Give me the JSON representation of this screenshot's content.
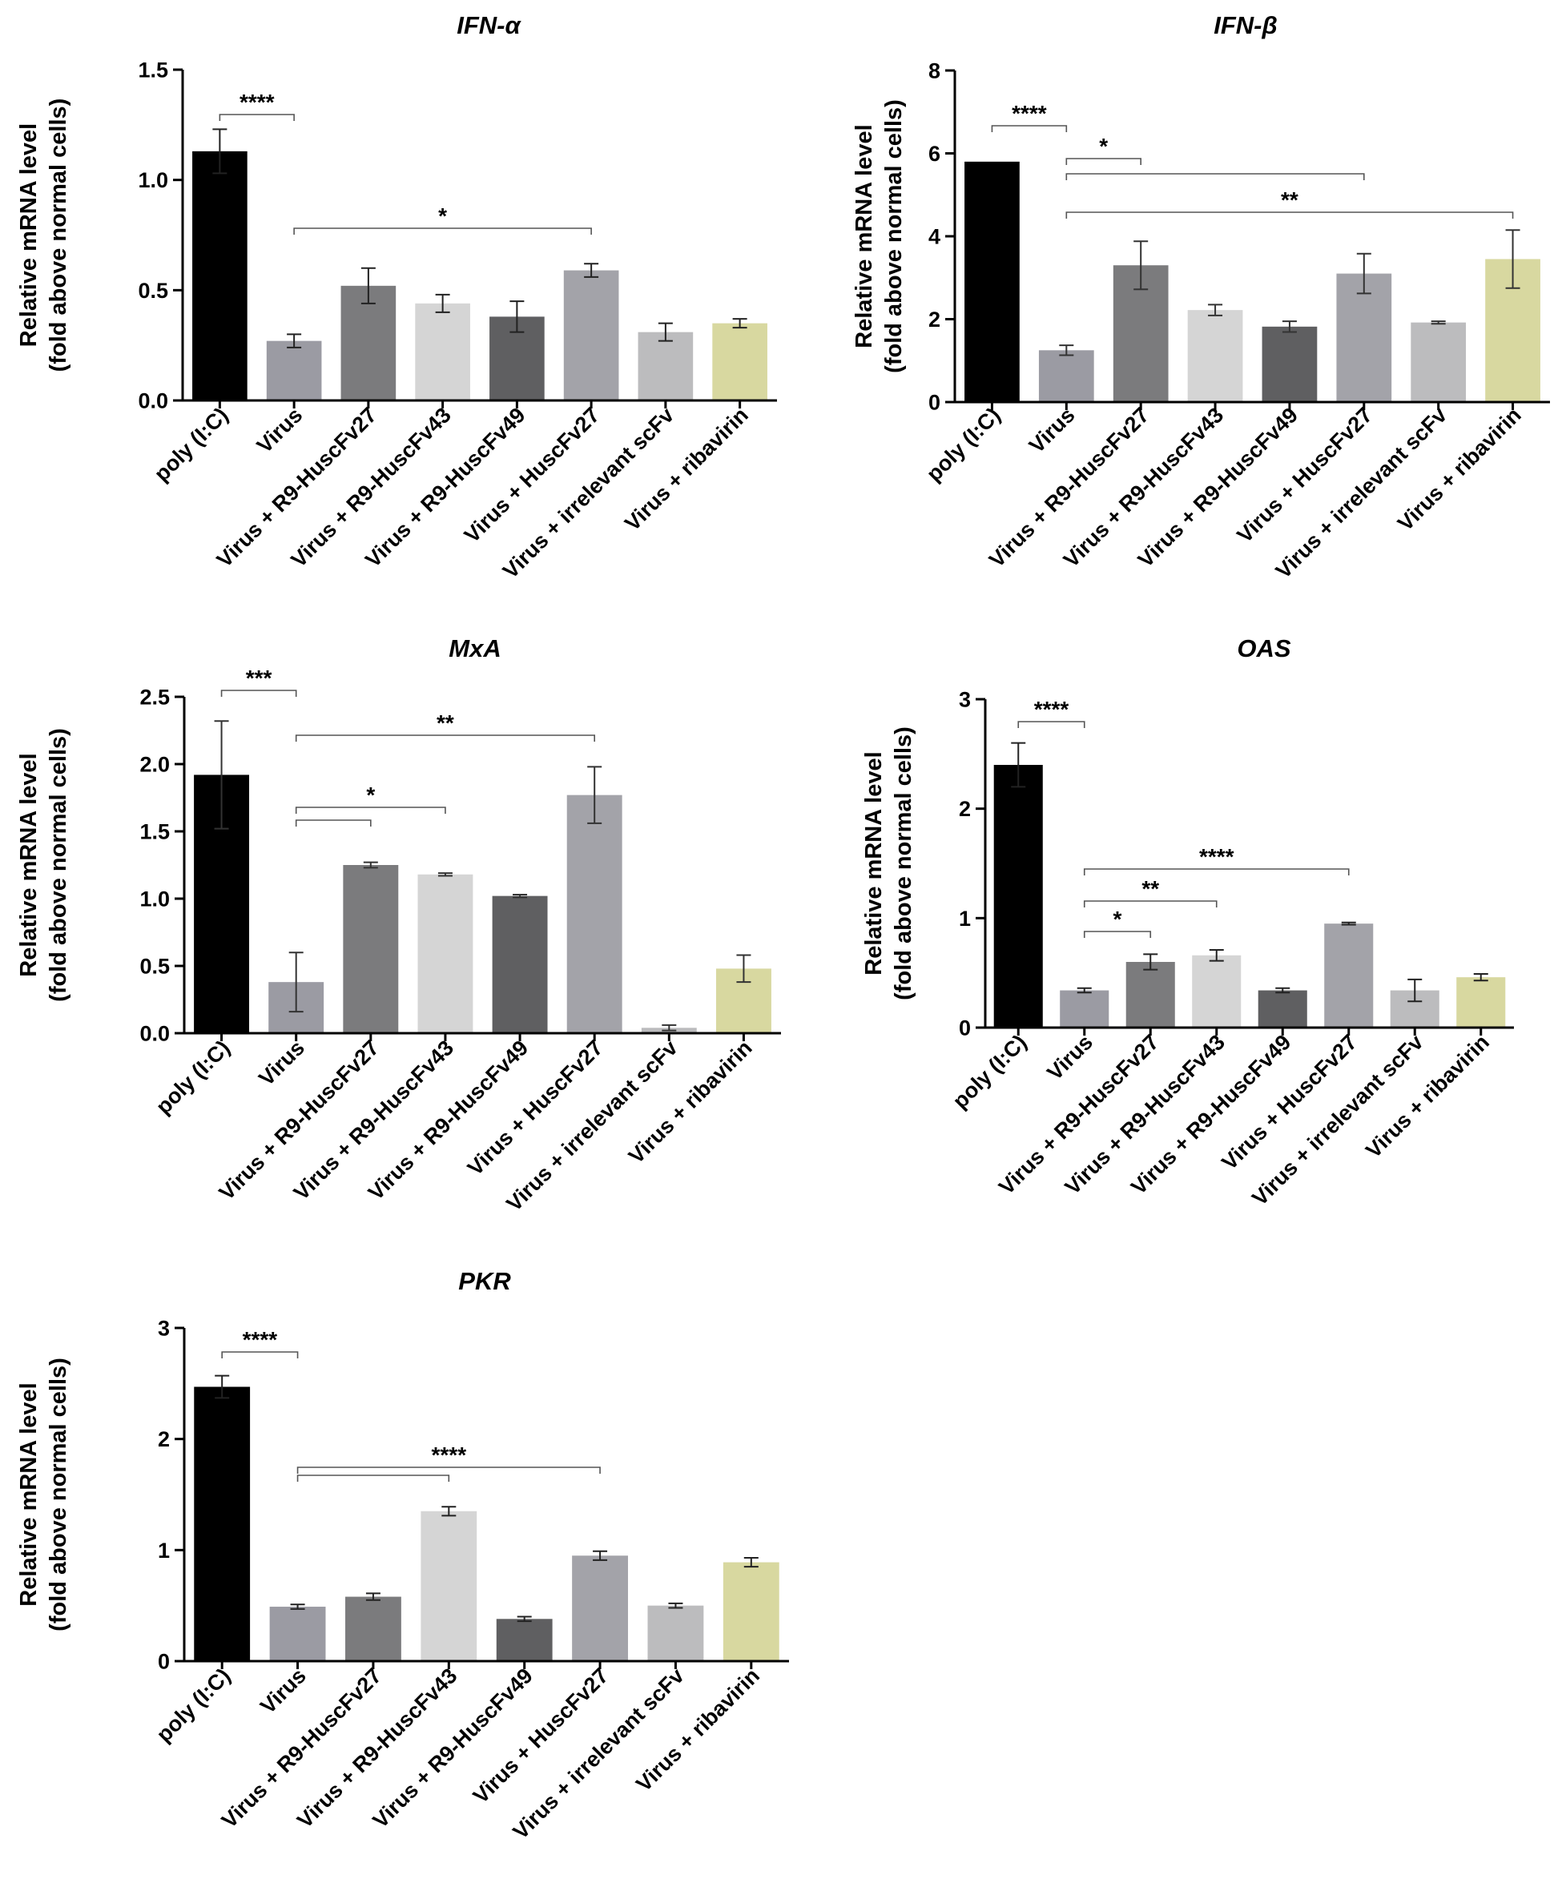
{
  "figure": {
    "categories": [
      "poly (I:C)",
      "Virus",
      "Virus + R9-HuscFv27",
      "Virus + R9-HuscFv43",
      "Virus + R9-HuscFv49",
      "Virus + HuscFv27",
      "Virus + irrelevant scFv",
      "Virus + ribavirin"
    ],
    "bar_colors": [
      "#000000",
      "#9b9ba3",
      "#7b7b7d",
      "#d5d5d5",
      "#5f5f61",
      "#a3a3a9",
      "#bcbcbe",
      "#d8d8a0"
    ]
  },
  "chart_data": [
    {
      "type": "bar",
      "title": "IFN-α",
      "ylabel": "Relative mRNA level",
      "ylabel2": "(fold above normal cells)",
      "categories": [
        "poly (I:C)",
        "Virus",
        "Virus + R9-HuscFv27",
        "Virus + R9-HuscFv43",
        "Virus + R9-HuscFv49",
        "Virus + HuscFv27",
        "Virus + irrelevant scFv",
        "Virus + ribavirin"
      ],
      "values": [
        1.13,
        0.27,
        0.52,
        0.44,
        0.38,
        0.59,
        0.31,
        0.35
      ],
      "errors": [
        0.1,
        0.03,
        0.08,
        0.04,
        0.07,
        0.03,
        0.04,
        0.02
      ],
      "ylim": [
        0,
        1.5
      ],
      "yticks": [
        "0.0",
        "0.5",
        "1.0",
        "1.5"
      ],
      "significance": [
        {
          "from": 0,
          "to": 1,
          "label": "****"
        },
        {
          "from": 1,
          "to": 5,
          "label": "*"
        }
      ]
    },
    {
      "type": "bar",
      "title": "IFN-β",
      "ylabel": "Relative mRNA level",
      "ylabel2": "(fold above normal cells)",
      "categories": [
        "poly (I:C)",
        "Virus",
        "Virus + R9-HuscFv27",
        "Virus + R9-HuscFv43",
        "Virus + R9-HuscFv49",
        "Virus + HuscFv27",
        "Virus + irrelevant scFv",
        "Virus + ribavirin"
      ],
      "values": [
        5.8,
        1.25,
        3.3,
        2.22,
        1.82,
        3.1,
        1.92,
        3.45
      ],
      "errors": [
        0,
        0.12,
        0.58,
        0.13,
        0.13,
        0.48,
        0.03,
        0.7
      ],
      "ylim": [
        0,
        8
      ],
      "yticks": [
        "0",
        "2",
        "4",
        "6",
        "8"
      ],
      "significance": [
        {
          "from": 0,
          "to": 1,
          "label": "****"
        },
        {
          "from": 1,
          "to": 2,
          "label": "*"
        },
        {
          "from": 1,
          "to": 5,
          "label": ""
        },
        {
          "from": 1,
          "to": 7,
          "label": "**"
        }
      ]
    },
    {
      "type": "bar",
      "title": "MxA",
      "ylabel": "Relative mRNA level",
      "ylabel2": "(fold above normal cells)",
      "categories": [
        "poly (I:C)",
        "Virus",
        "Virus + R9-HuscFv27",
        "Virus + R9-HuscFv43",
        "Virus + R9-HuscFv49",
        "Virus + HuscFv27",
        "Virus + irrelevant scFv",
        "Virus + ribavirin"
      ],
      "values": [
        1.92,
        0.38,
        1.25,
        1.18,
        1.02,
        1.77,
        0.04,
        0.48
      ],
      "errors": [
        0.4,
        0.22,
        0.02,
        0.01,
        0.01,
        0.21,
        0.02,
        0.1
      ],
      "ylim": [
        0,
        2.5
      ],
      "yticks": [
        "0.0",
        "0.5",
        "1.0",
        "1.5",
        "2.0",
        "2.5"
      ],
      "significance": [
        {
          "from": 0,
          "to": 1,
          "label": "***"
        },
        {
          "from": 1,
          "to": 5,
          "label": "**"
        },
        {
          "from": 1,
          "to": 3,
          "label": "*"
        },
        {
          "from": 1,
          "to": 2,
          "label": ""
        }
      ]
    },
    {
      "type": "bar",
      "title": "OAS",
      "ylabel": "Relative mRNA level",
      "ylabel2": "(fold above normal cells)",
      "categories": [
        "poly (I:C)",
        "Virus",
        "Virus + R9-HuscFv27",
        "Virus + R9-HuscFv43",
        "Virus + R9-HuscFv49",
        "Virus + HuscFv27",
        "Virus + irrelevant scFv",
        "Virus + ribavirin"
      ],
      "values": [
        2.4,
        0.34,
        0.6,
        0.66,
        0.34,
        0.95,
        0.34,
        0.46
      ],
      "errors": [
        0.2,
        0.02,
        0.07,
        0.05,
        0.02,
        0.01,
        0.1,
        0.03
      ],
      "ylim": [
        0,
        3
      ],
      "yticks": [
        "0",
        "1",
        "2",
        "3"
      ],
      "significance": [
        {
          "from": 0,
          "to": 1,
          "label": "****"
        },
        {
          "from": 1,
          "to": 5,
          "label": "****"
        },
        {
          "from": 1,
          "to": 3,
          "label": "**"
        },
        {
          "from": 1,
          "to": 2,
          "label": "*"
        }
      ]
    },
    {
      "type": "bar",
      "title": "PKR",
      "ylabel": "Relative mRNA level",
      "ylabel2": "(fold above normal cells)",
      "categories": [
        "poly (I:C)",
        "Virus",
        "Virus + R9-HuscFv27",
        "Virus + R9-HuscFv43",
        "Virus + R9-HuscFv49",
        "Virus + HuscFv27",
        "Virus + irrelevant scFv",
        "Virus + ribavirin"
      ],
      "values": [
        2.47,
        0.49,
        0.58,
        1.35,
        0.38,
        0.95,
        0.5,
        0.89
      ],
      "errors": [
        0.1,
        0.02,
        0.03,
        0.04,
        0.02,
        0.04,
        0.02,
        0.04
      ],
      "ylim": [
        0,
        3
      ],
      "yticks": [
        "0",
        "1",
        "2",
        "3"
      ],
      "significance": [
        {
          "from": 0,
          "to": 1,
          "label": "****"
        },
        {
          "from": 1,
          "to": 3,
          "label": ""
        },
        {
          "from": 1,
          "to": 5,
          "label": "****"
        }
      ]
    }
  ]
}
